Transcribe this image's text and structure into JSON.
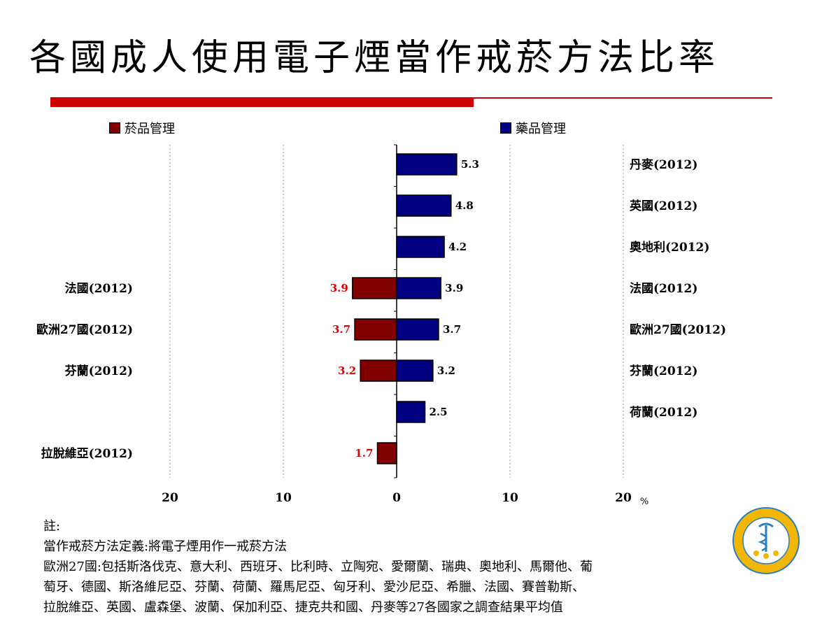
{
  "title": "各國成人使用電子煙當作戒菸方法比率",
  "legend": {
    "tobacco": "菸品管理",
    "drug": "藥品管理"
  },
  "colors": {
    "tobacco": "#800000",
    "drug": "#000080",
    "tobacco_label": "#e00000",
    "accent_rule": "#cc0000"
  },
  "chart_data": {
    "type": "bar",
    "orientation": "horizontal-diverging",
    "unit": "%",
    "x_ticks": [
      "20",
      "10",
      "0",
      "10",
      "20"
    ],
    "xlim": [
      -20,
      20
    ],
    "grid": "vertical dotted",
    "legend_position": "top",
    "right": {
      "name": "藥品管理",
      "categories": [
        "丹麥(2012)",
        "英國(2012)",
        "奧地利(2012)",
        "法國(2012)",
        "歐洲27國(2012)",
        "芬蘭(2012)",
        "荷蘭(2012)"
      ],
      "values": [
        5.3,
        4.8,
        4.2,
        3.9,
        3.7,
        3.2,
        2.5
      ],
      "labels": [
        "5.3",
        "4.8",
        "4.2",
        "3.9",
        "3.7",
        "3.2",
        "2.5"
      ],
      "rows": [
        0,
        1,
        2,
        3,
        4,
        5,
        6
      ]
    },
    "left": {
      "name": "菸品管理",
      "categories": [
        "法國(2012)",
        "歐洲27國(2012)",
        "芬蘭(2012)",
        "拉脫維亞(2012)"
      ],
      "values": [
        3.9,
        3.7,
        3.2,
        1.7
      ],
      "labels": [
        "3.9",
        "3.7",
        "3.2",
        "1.7"
      ],
      "rows": [
        3,
        4,
        5,
        7
      ]
    }
  },
  "notes": [
    "註:",
    "當作戒菸方法定義:將電子煙用作一戒菸方法",
    "歐洲27國:包括斯洛伐克、意大利、西班牙、比利時、立陶宛、愛爾蘭、瑞典、奧地利、馬爾他、葡",
    "萄牙、德國、斯洛維尼亞、芬蘭、荷蘭、羅馬尼亞、匈牙利、愛沙尼亞、希臘、法國、賽普勒斯、",
    "拉脫維亞、英國、盧森堡、波蘭、保加利亞、捷克共和國、丹麥等27各國家之調查結果平均值"
  ]
}
